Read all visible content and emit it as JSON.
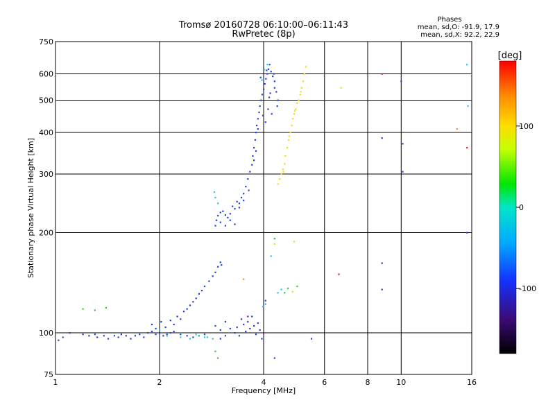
{
  "chart_data": {
    "type": "scatter",
    "title": "Tromsø 20160728 06:10:00–06:11:43",
    "subtitle": "RwPretec (8p)",
    "xlabel": "Frequency [MHz]",
    "ylabel": "Stationary phase Virtual Height [km]",
    "x_scale": "log",
    "y_scale": "log",
    "xlim": [
      1,
      16
    ],
    "ylim": [
      75,
      750
    ],
    "x_ticks": [
      1,
      2,
      4,
      6,
      8,
      10,
      16
    ],
    "x_tick_labels": [
      "1",
      "2",
      "4",
      "6",
      "8",
      "10",
      "16"
    ],
    "y_ticks": [
      75,
      100,
      200,
      300,
      400,
      500,
      600,
      750
    ],
    "y_tick_labels": [
      "75",
      "100",
      "200",
      "300",
      "400",
      "500",
      "600",
      "750"
    ],
    "grid": true,
    "stats": {
      "heading": "Phases",
      "line_o": "mean, sd,O: -91.9, 17.9",
      "line_x": "mean, sd,X:  92.2, 22.9"
    },
    "colorbar": {
      "label": "[deg]",
      "range": [
        -180,
        180
      ],
      "ticks": [
        -100,
        0,
        100
      ],
      "tick_labels": [
        "-100",
        "0",
        "100"
      ]
    },
    "series": [
      {
        "color": "#1f3fdc",
        "points": [
          [
            1.02,
            95
          ],
          [
            1.05,
            97
          ],
          [
            1.1,
            100
          ],
          [
            1.2,
            99
          ],
          [
            1.25,
            98
          ],
          [
            1.3,
            99
          ],
          [
            1.32,
            97
          ],
          [
            1.38,
            98
          ],
          [
            1.42,
            96
          ],
          [
            1.48,
            98
          ],
          [
            1.52,
            97
          ],
          [
            1.55,
            99
          ],
          [
            1.6,
            98
          ],
          [
            1.65,
            96
          ],
          [
            1.7,
            98
          ],
          [
            1.75,
            99
          ],
          [
            1.8,
            97
          ],
          [
            1.85,
            100
          ],
          [
            1.9,
            101
          ],
          [
            1.95,
            99
          ],
          [
            2.0,
            100
          ],
          [
            2.05,
            98
          ],
          [
            2.1,
            99
          ],
          [
            2.15,
            100
          ],
          [
            2.2,
            101
          ],
          [
            2.3,
            99
          ],
          [
            2.4,
            98
          ],
          [
            2.5,
            97
          ],
          [
            2.6,
            98
          ],
          [
            2.7,
            99
          ],
          [
            1.9,
            106
          ],
          [
            1.95,
            103
          ],
          [
            2.02,
            108
          ],
          [
            2.08,
            104
          ],
          [
            2.15,
            109
          ],
          [
            2.2,
            106
          ],
          [
            2.25,
            112
          ],
          [
            2.3,
            110
          ],
          [
            2.35,
            116
          ],
          [
            2.4,
            118
          ],
          [
            2.45,
            121
          ],
          [
            2.5,
            124
          ],
          [
            2.55,
            127
          ],
          [
            2.6,
            131
          ],
          [
            2.65,
            134
          ],
          [
            2.7,
            138
          ],
          [
            2.78,
            143
          ],
          [
            2.85,
            148
          ],
          [
            2.9,
            152
          ],
          [
            2.95,
            158
          ],
          [
            3.0,
            163
          ],
          [
            3.02,
            160
          ],
          [
            2.9,
            105
          ],
          [
            3.0,
            102
          ],
          [
            3.1,
            108
          ],
          [
            3.2,
            103
          ],
          [
            3.3,
            100
          ],
          [
            3.35,
            104
          ],
          [
            3.4,
            98
          ],
          [
            3.45,
            110
          ],
          [
            3.5,
            106
          ],
          [
            3.55,
            101
          ],
          [
            3.6,
            108
          ],
          [
            3.65,
            103
          ],
          [
            3.7,
            112
          ],
          [
            3.75,
            105
          ],
          [
            3.8,
            99
          ],
          [
            3.85,
            107
          ],
          [
            3.9,
            102
          ],
          [
            3.95,
            96
          ],
          [
            3.0,
            96
          ],
          [
            3.1,
            98
          ],
          [
            2.9,
            210
          ],
          [
            2.92,
            218
          ],
          [
            2.95,
            225
          ],
          [
            3.0,
            230
          ],
          [
            3.05,
            232
          ],
          [
            3.1,
            226
          ],
          [
            3.15,
            222
          ],
          [
            3.2,
            228
          ],
          [
            3.25,
            240
          ],
          [
            3.3,
            236
          ],
          [
            3.35,
            248
          ],
          [
            3.4,
            245
          ],
          [
            3.45,
            255
          ],
          [
            3.5,
            262
          ],
          [
            3.55,
            275
          ],
          [
            3.6,
            290
          ],
          [
            3.65,
            305
          ],
          [
            3.7,
            320
          ],
          [
            3.72,
            340
          ],
          [
            3.75,
            360
          ],
          [
            3.78,
            380
          ],
          [
            3.8,
            400
          ],
          [
            3.82,
            420
          ],
          [
            3.85,
            440
          ],
          [
            3.88,
            460
          ],
          [
            3.9,
            480
          ],
          [
            3.93,
            500
          ],
          [
            3.96,
            520
          ],
          [
            4.0,
            540
          ],
          [
            4.03,
            560
          ],
          [
            4.06,
            580
          ],
          [
            4.1,
            600
          ],
          [
            4.13,
            620
          ],
          [
            4.16,
            640
          ],
          [
            4.2,
            610
          ],
          [
            4.25,
            590
          ],
          [
            4.3,
            570
          ],
          [
            4.35,
            530
          ],
          [
            4.4,
            500
          ],
          [
            4.12,
            470
          ],
          [
            3.0,
            215
          ],
          [
            3.1,
            210
          ],
          [
            3.2,
            218
          ],
          [
            3.3,
            212
          ],
          [
            3.4,
            238
          ],
          [
            3.5,
            250
          ],
          [
            3.62,
            268
          ],
          [
            3.75,
            330
          ],
          [
            3.85,
            410
          ],
          [
            3.98,
            450
          ],
          [
            4.05,
            430
          ],
          [
            4.15,
            510
          ],
          [
            4.22,
            455
          ],
          [
            4.3,
            545
          ],
          [
            4.38,
            480
          ],
          [
            3.92,
            585
          ],
          [
            4.08,
            615
          ],
          [
            4.18,
            525
          ],
          [
            4.28,
            600
          ],
          [
            3.8,
            352
          ],
          [
            8.8,
            385
          ],
          [
            8.8,
            135
          ],
          [
            8.8,
            162
          ],
          [
            10.1,
            305
          ],
          [
            10.1,
            370
          ],
          [
            10.0,
            570
          ],
          [
            15.5,
            200
          ],
          [
            5.5,
            96
          ],
          [
            4.3,
            84
          ],
          [
            4.05,
            125
          ]
        ]
      },
      {
        "color": "#1ec8e6",
        "points": [
          [
            2.3,
            97
          ],
          [
            2.45,
            96
          ],
          [
            2.6,
            98
          ],
          [
            2.75,
            97
          ],
          [
            2.85,
            96
          ],
          [
            2.55,
            99
          ],
          [
            2.3,
            100
          ],
          [
            2.0,
            102
          ],
          [
            2.1,
            98
          ],
          [
            2.9,
            255
          ],
          [
            2.95,
            245
          ],
          [
            2.88,
            265
          ],
          [
            3.98,
            120
          ],
          [
            4.05,
            122
          ],
          [
            4.4,
            132
          ],
          [
            4.5,
            135
          ],
          [
            4.02,
            618
          ],
          [
            4.1,
            640
          ],
          [
            3.95,
            575
          ],
          [
            15.5,
            640
          ],
          [
            15.6,
            480
          ],
          [
            4.2,
            170
          ],
          [
            2.7,
            97
          ]
        ]
      },
      {
        "color": "#32c832",
        "points": [
          [
            1.2,
            118
          ],
          [
            1.3,
            117
          ],
          [
            1.4,
            119
          ],
          [
            2.9,
            88
          ],
          [
            2.95,
            84
          ],
          [
            4.6,
            132
          ],
          [
            4.7,
            136
          ],
          [
            5.0,
            138
          ],
          [
            4.3,
            192
          ]
        ]
      },
      {
        "color": "#f0dc14",
        "points": [
          [
            4.4,
            280
          ],
          [
            4.45,
            290
          ],
          [
            4.5,
            300
          ],
          [
            4.55,
            310
          ],
          [
            4.6,
            322
          ],
          [
            4.62,
            340
          ],
          [
            4.68,
            360
          ],
          [
            4.72,
            380
          ],
          [
            4.78,
            400
          ],
          [
            4.82,
            420
          ],
          [
            4.86,
            440
          ],
          [
            4.9,
            455
          ],
          [
            4.95,
            470
          ],
          [
            5.0,
            490
          ],
          [
            5.05,
            500
          ],
          [
            5.1,
            520
          ],
          [
            5.15,
            545
          ],
          [
            5.2,
            570
          ],
          [
            5.25,
            600
          ],
          [
            5.3,
            630
          ],
          [
            4.56,
            305
          ],
          [
            4.74,
            390
          ],
          [
            4.92,
            465
          ],
          [
            5.12,
            530
          ],
          [
            4.3,
            185
          ],
          [
            4.9,
            188
          ],
          [
            6.7,
            545
          ],
          [
            4.85,
            133
          ]
        ]
      },
      {
        "color": "#ff8c00",
        "points": [
          [
            3.5,
            145
          ],
          [
            14.5,
            410
          ]
        ]
      },
      {
        "color": "#e61e1e",
        "points": [
          [
            6.6,
            150
          ],
          [
            8.8,
            600
          ],
          [
            15.5,
            360
          ]
        ]
      },
      {
        "color": "#6e14a0",
        "points": [
          [
            4.0,
            100
          ],
          [
            3.6,
            112
          ]
        ]
      }
    ]
  }
}
